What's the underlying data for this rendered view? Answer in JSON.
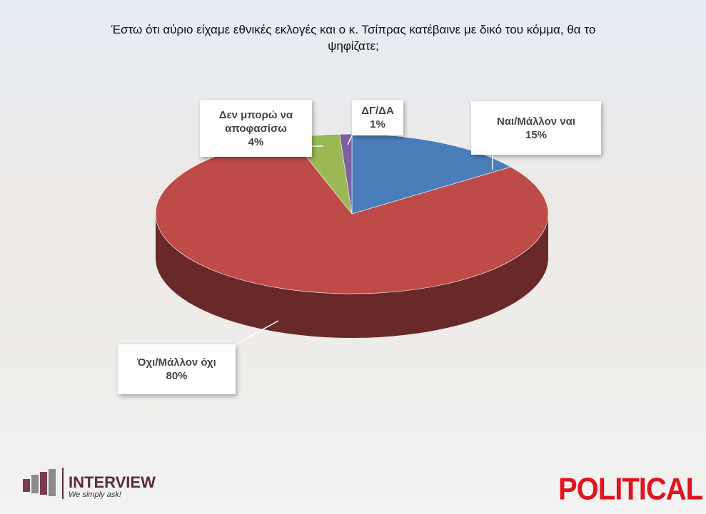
{
  "chart_data": {
    "type": "pie3d",
    "title": "Έστω ότι αύριο είχαμε εθνικές εκλογές και ο κ. Τσίπρας κατέβαινε με δικό του κόμμα, θα το ψηφίζατε;",
    "categories": [
      "Ναι/Μάλλον ναι",
      "Όχι/Μάλλον όχι",
      "Δεν μπορώ να αποφασίσω",
      "ΔΓ/ΔΑ"
    ],
    "values": [
      15,
      80,
      4,
      1
    ],
    "value_labels": [
      "15%",
      "80%",
      "4%",
      "1%"
    ],
    "colors": [
      "#4a7ebb",
      "#be4b48",
      "#98b954",
      "#7d60a0"
    ]
  },
  "logos": {
    "left_name": "INTERVIEW",
    "left_tagline": "We simply ask!",
    "right_name": "POLITICAL"
  }
}
